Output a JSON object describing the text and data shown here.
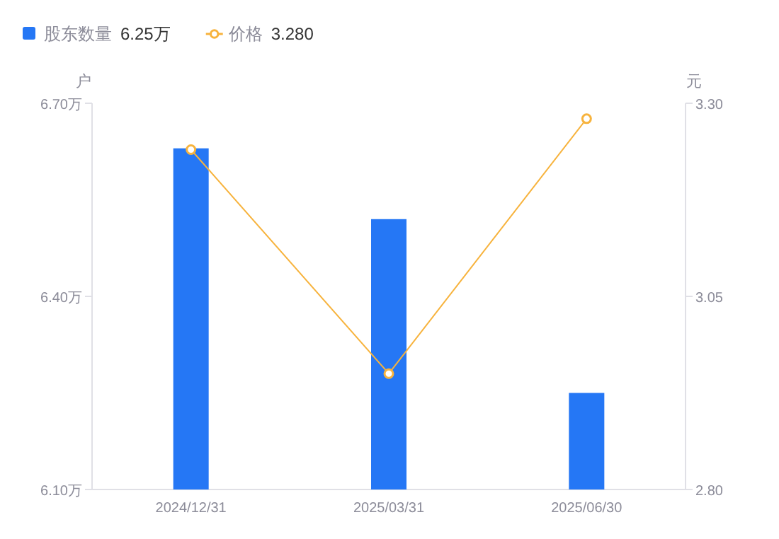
{
  "chart_data": {
    "type": "bar",
    "categories": [
      "2024/12/31",
      "2025/03/31",
      "2025/06/30"
    ],
    "series": [
      {
        "name": "股东数量",
        "color": "#2577f5",
        "values": [
          6.63,
          6.52,
          6.25
        ]
      },
      {
        "name": "价格",
        "type": "line",
        "axis": "y2",
        "color": "#f7b33d",
        "marker": "circle",
        "values": [
          3.24,
          2.95,
          3.28
        ]
      }
    ],
    "ylabel": "户",
    "y2label": "元",
    "ylim": [
      6.1,
      6.7
    ],
    "yticks": [
      {
        "value": 6.1,
        "label": "6.10万"
      },
      {
        "value": 6.4,
        "label": "6.40万"
      },
      {
        "value": 6.7,
        "label": "6.70万"
      }
    ],
    "y2lim": [
      2.8,
      3.3
    ],
    "y2ticks": [
      {
        "value": 2.8,
        "label": "2.80"
      },
      {
        "value": 3.05,
        "label": "3.05"
      },
      {
        "value": 3.3,
        "label": "3.30"
      }
    ],
    "legend": "top left",
    "grid": false,
    "annotations": [
      "6.25万",
      "3.280"
    ]
  }
}
